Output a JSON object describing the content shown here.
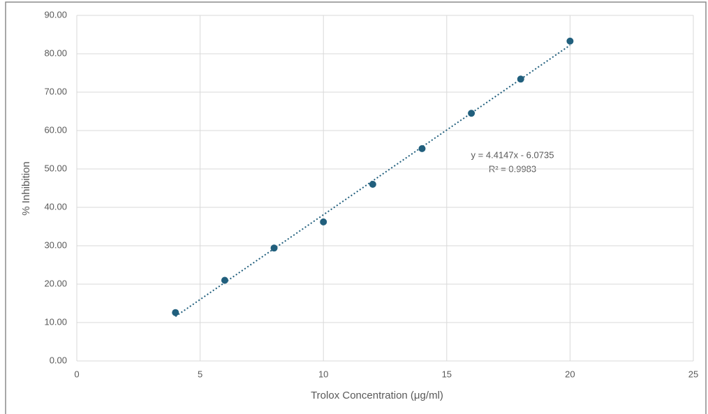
{
  "chart_data": {
    "type": "scatter",
    "x_label": "Trolox Concentration (μg/ml)",
    "y_label": "% Inhibition",
    "series": [
      {
        "name": "% Inhibition",
        "color": "#215f7d",
        "x": [
          4,
          6,
          8,
          10,
          12,
          14,
          16,
          18,
          20
        ],
        "values": [
          12.6,
          21.0,
          29.4,
          36.2,
          46.0,
          55.3,
          64.5,
          73.4,
          83.3
        ]
      }
    ],
    "trendline": {
      "slope": 4.4147,
      "intercept": -6.0735,
      "equation": "y = 4.4147x - 6.0735",
      "r_squared": "R² = 0.9983"
    },
    "xlim": [
      0,
      25
    ],
    "xticks": [
      0,
      5,
      10,
      15,
      20,
      25
    ],
    "ylim": [
      0,
      90
    ],
    "yticks": [
      {
        "value": 0,
        "label": "0.00"
      },
      {
        "value": 10,
        "label": "10.00"
      },
      {
        "value": 20,
        "label": "20.00"
      },
      {
        "value": 30,
        "label": "30.00"
      },
      {
        "value": 40,
        "label": "40.00"
      },
      {
        "value": 50,
        "label": "50.00"
      },
      {
        "value": 60,
        "label": "60.00"
      },
      {
        "value": 70,
        "label": "70.00"
      },
      {
        "value": 80,
        "label": "80.00"
      },
      {
        "value": 90,
        "label": "90.00"
      }
    ],
    "grid": true
  }
}
